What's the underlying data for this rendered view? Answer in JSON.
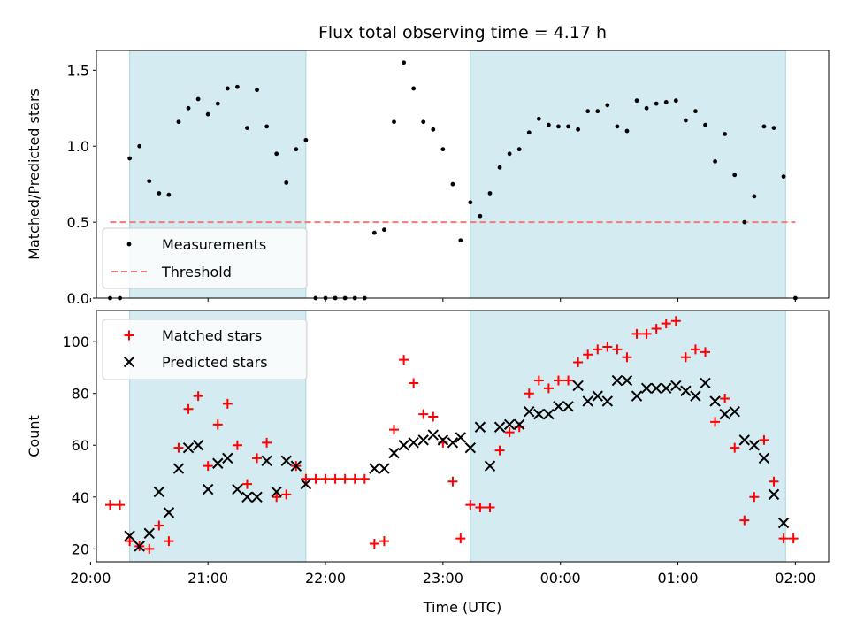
{
  "chart_data": [
    {
      "type": "scatter",
      "title": "Flux total observing time = 4.17 h",
      "ylabel": "Matched/Predicted stars",
      "xlabel": "",
      "xlim": [
        "20:03",
        "02:17"
      ],
      "ylim": [
        0,
        1.63
      ],
      "yticks": [
        0.0,
        0.5,
        1.0,
        1.5
      ],
      "ytick_labels": [
        "0.0",
        "0.5",
        "1.0",
        "1.5"
      ],
      "legend": {
        "placement": "lower-left",
        "entries": [
          "Measurements",
          "Threshold"
        ]
      },
      "shaded_intervals": [
        [
          "20:20",
          "21:50"
        ],
        [
          "23:14",
          "01:55"
        ]
      ],
      "threshold": {
        "value": 0.5,
        "x_range": [
          "20:10",
          "02:00"
        ],
        "color": "#f07c7c"
      },
      "series": [
        {
          "name": "Measurements",
          "color": "#000000",
          "points": [
            [
              "20:10",
              0.0
            ],
            [
              "20:15",
              0.0
            ],
            [
              "20:20",
              0.92
            ],
            [
              "20:25",
              1.0
            ],
            [
              "20:30",
              0.77
            ],
            [
              "20:35",
              0.69
            ],
            [
              "20:40",
              0.68
            ],
            [
              "20:45",
              1.16
            ],
            [
              "20:50",
              1.25
            ],
            [
              "20:55",
              1.31
            ],
            [
              "21:00",
              1.21
            ],
            [
              "21:05",
              1.28
            ],
            [
              "21:10",
              1.38
            ],
            [
              "21:15",
              1.39
            ],
            [
              "21:20",
              1.12
            ],
            [
              "21:25",
              1.37
            ],
            [
              "21:30",
              1.13
            ],
            [
              "21:35",
              0.95
            ],
            [
              "21:40",
              0.76
            ],
            [
              "21:45",
              0.98
            ],
            [
              "21:50",
              1.04
            ],
            [
              "21:55",
              0.0
            ],
            [
              "22:00",
              0.0
            ],
            [
              "22:05",
              0.0
            ],
            [
              "22:10",
              0.0
            ],
            [
              "22:15",
              0.0
            ],
            [
              "22:20",
              0.0
            ],
            [
              "22:25",
              0.43
            ],
            [
              "22:30",
              0.45
            ],
            [
              "22:35",
              1.16
            ],
            [
              "22:40",
              1.55
            ],
            [
              "22:45",
              1.38
            ],
            [
              "22:50",
              1.16
            ],
            [
              "22:55",
              1.11
            ],
            [
              "23:00",
              0.98
            ],
            [
              "23:05",
              0.75
            ],
            [
              "23:09",
              0.38
            ],
            [
              "23:14",
              0.63
            ],
            [
              "23:19",
              0.54
            ],
            [
              "23:24",
              0.69
            ],
            [
              "23:29",
              0.86
            ],
            [
              "23:34",
              0.95
            ],
            [
              "23:39",
              0.98
            ],
            [
              "23:44",
              1.09
            ],
            [
              "23:49",
              1.18
            ],
            [
              "23:54",
              1.14
            ],
            [
              "23:59",
              1.13
            ],
            [
              "00:04",
              1.13
            ],
            [
              "00:09",
              1.11
            ],
            [
              "00:14",
              1.23
            ],
            [
              "00:19",
              1.23
            ],
            [
              "00:24",
              1.27
            ],
            [
              "00:29",
              1.13
            ],
            [
              "00:34",
              1.1
            ],
            [
              "00:39",
              1.3
            ],
            [
              "00:44",
              1.25
            ],
            [
              "00:49",
              1.28
            ],
            [
              "00:54",
              1.29
            ],
            [
              "00:59",
              1.3
            ],
            [
              "01:04",
              1.17
            ],
            [
              "01:09",
              1.23
            ],
            [
              "01:14",
              1.14
            ],
            [
              "01:19",
              0.9
            ],
            [
              "01:24",
              1.08
            ],
            [
              "01:29",
              0.81
            ],
            [
              "01:34",
              0.5
            ],
            [
              "01:39",
              0.67
            ],
            [
              "01:44",
              1.13
            ],
            [
              "01:49",
              1.12
            ],
            [
              "01:54",
              0.8
            ],
            [
              "02:00",
              0.0
            ]
          ]
        }
      ]
    },
    {
      "type": "scatter",
      "title": "",
      "ylabel": "Count",
      "xlabel": "Time (UTC)",
      "xlim": [
        "20:03",
        "02:17"
      ],
      "xticks": [
        "20:00",
        "21:00",
        "22:00",
        "23:00",
        "00:00",
        "01:00",
        "02:00"
      ],
      "ylim": [
        15,
        112
      ],
      "yticks": [
        20,
        40,
        60,
        80,
        100
      ],
      "ytick_labels": [
        "20",
        "40",
        "60",
        "80",
        "100"
      ],
      "legend": {
        "placement": "upper-left",
        "entries": [
          "Matched stars",
          "Predicted stars"
        ]
      },
      "shaded_intervals": [
        [
          "20:20",
          "21:50"
        ],
        [
          "23:14",
          "01:55"
        ]
      ],
      "series": [
        {
          "name": "Matched stars",
          "color": "#ff0000",
          "marker": "plus",
          "points": [
            [
              "20:10",
              37
            ],
            [
              "20:15",
              37
            ],
            [
              "20:20",
              23
            ],
            [
              "20:25",
              21
            ],
            [
              "20:30",
              20
            ],
            [
              "20:35",
              29
            ],
            [
              "20:40",
              23
            ],
            [
              "20:45",
              59
            ],
            [
              "20:50",
              74
            ],
            [
              "20:55",
              79
            ],
            [
              "21:00",
              52
            ],
            [
              "21:05",
              68
            ],
            [
              "21:10",
              76
            ],
            [
              "21:15",
              60
            ],
            [
              "21:20",
              45
            ],
            [
              "21:25",
              55
            ],
            [
              "21:30",
              61
            ],
            [
              "21:35",
              40
            ],
            [
              "21:40",
              41
            ],
            [
              "21:45",
              52
            ],
            [
              "21:50",
              47
            ],
            [
              "21:55",
              47
            ],
            [
              "22:00",
              47
            ],
            [
              "22:05",
              47
            ],
            [
              "22:10",
              47
            ],
            [
              "22:15",
              47
            ],
            [
              "22:20",
              47
            ],
            [
              "22:25",
              22
            ],
            [
              "22:30",
              23
            ],
            [
              "22:35",
              66
            ],
            [
              "22:40",
              93
            ],
            [
              "22:45",
              84
            ],
            [
              "22:50",
              72
            ],
            [
              "22:55",
              71
            ],
            [
              "23:00",
              61
            ],
            [
              "23:05",
              46
            ],
            [
              "23:09",
              24
            ],
            [
              "23:14",
              37
            ],
            [
              "23:19",
              36
            ],
            [
              "23:24",
              36
            ],
            [
              "23:29",
              58
            ],
            [
              "23:34",
              65
            ],
            [
              "23:39",
              67
            ],
            [
              "23:44",
              80
            ],
            [
              "23:49",
              85
            ],
            [
              "23:54",
              82
            ],
            [
              "23:59",
              85
            ],
            [
              "00:04",
              85
            ],
            [
              "00:09",
              92
            ],
            [
              "00:14",
              95
            ],
            [
              "00:19",
              97
            ],
            [
              "00:24",
              98
            ],
            [
              "00:29",
              97
            ],
            [
              "00:34",
              94
            ],
            [
              "00:39",
              103
            ],
            [
              "00:44",
              103
            ],
            [
              "00:49",
              105
            ],
            [
              "00:54",
              107
            ],
            [
              "00:59",
              108
            ],
            [
              "01:04",
              94
            ],
            [
              "01:09",
              97
            ],
            [
              "01:14",
              96
            ],
            [
              "01:19",
              69
            ],
            [
              "01:24",
              78
            ],
            [
              "01:29",
              59
            ],
            [
              "01:34",
              31
            ],
            [
              "01:39",
              40
            ],
            [
              "01:44",
              62
            ],
            [
              "01:49",
              46
            ],
            [
              "01:54",
              24
            ],
            [
              "01:59",
              24
            ]
          ]
        },
        {
          "name": "Predicted stars",
          "color": "#000000",
          "marker": "x",
          "points": [
            [
              "20:20",
              25
            ],
            [
              "20:25",
              21
            ],
            [
              "20:30",
              26
            ],
            [
              "20:35",
              42
            ],
            [
              "20:40",
              34
            ],
            [
              "20:45",
              51
            ],
            [
              "20:50",
              59
            ],
            [
              "20:55",
              60
            ],
            [
              "21:00",
              43
            ],
            [
              "21:05",
              53
            ],
            [
              "21:10",
              55
            ],
            [
              "21:15",
              43
            ],
            [
              "21:20",
              40
            ],
            [
              "21:25",
              40
            ],
            [
              "21:30",
              54
            ],
            [
              "21:35",
              42
            ],
            [
              "21:40",
              54
            ],
            [
              "21:45",
              52
            ],
            [
              "21:50",
              45
            ],
            [
              "22:25",
              51
            ],
            [
              "22:30",
              51
            ],
            [
              "22:35",
              57
            ],
            [
              "22:40",
              60
            ],
            [
              "22:45",
              61
            ],
            [
              "22:50",
              62
            ],
            [
              "22:55",
              64
            ],
            [
              "23:00",
              62
            ],
            [
              "23:05",
              61
            ],
            [
              "23:09",
              63
            ],
            [
              "23:14",
              59
            ],
            [
              "23:19",
              67
            ],
            [
              "23:24",
              52
            ],
            [
              "23:29",
              67
            ],
            [
              "23:34",
              68
            ],
            [
              "23:39",
              68
            ],
            [
              "23:44",
              73
            ],
            [
              "23:49",
              72
            ],
            [
              "23:54",
              72
            ],
            [
              "23:59",
              75
            ],
            [
              "00:04",
              75
            ],
            [
              "00:09",
              83
            ],
            [
              "00:14",
              77
            ],
            [
              "00:19",
              79
            ],
            [
              "00:24",
              77
            ],
            [
              "00:29",
              85
            ],
            [
              "00:34",
              85
            ],
            [
              "00:39",
              79
            ],
            [
              "00:44",
              82
            ],
            [
              "00:49",
              82
            ],
            [
              "00:54",
              82
            ],
            [
              "00:59",
              83
            ],
            [
              "01:04",
              81
            ],
            [
              "01:09",
              79
            ],
            [
              "01:14",
              84
            ],
            [
              "01:19",
              77
            ],
            [
              "01:24",
              72
            ],
            [
              "01:29",
              73
            ],
            [
              "01:34",
              62
            ],
            [
              "01:39",
              60
            ],
            [
              "01:44",
              55
            ],
            [
              "01:49",
              41
            ],
            [
              "01:54",
              30
            ]
          ]
        }
      ]
    }
  ],
  "colors": {
    "shade": "#d4ebf1",
    "shade_edge": "#a9d6df"
  }
}
